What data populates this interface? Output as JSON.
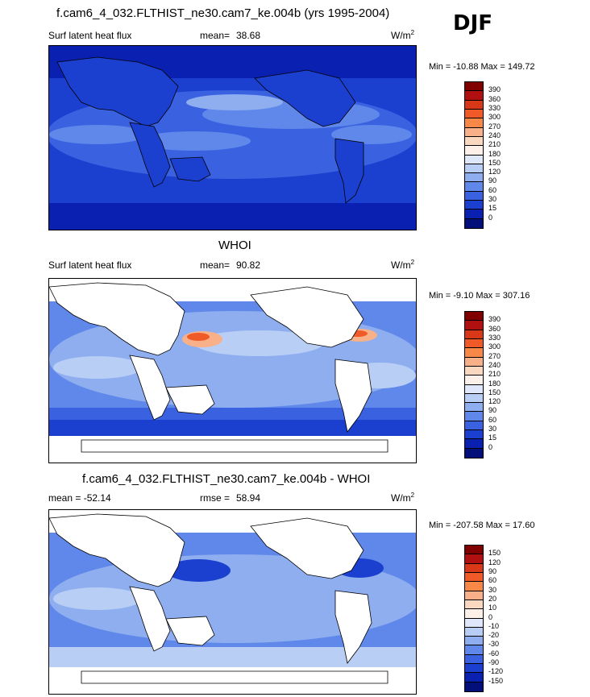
{
  "run_title": "f.cam6_4_032.FLTHIST_ne30.cam7_ke.004b (yrs 1995-2004)",
  "season": "DJF",
  "panels": [
    {
      "title": "",
      "variable": "Surf latent heat flux",
      "mean_label": "mean=",
      "mean_value": "38.68",
      "units": "W/m",
      "units_exp": "2",
      "minmax": "Min = -10.88 Max = 149.72",
      "colorbar_ticks": [
        "390",
        "360",
        "330",
        "300",
        "270",
        "240",
        "210",
        "180",
        "150",
        "120",
        "90",
        "60",
        "30",
        "15",
        "0"
      ]
    },
    {
      "title": "WHOI",
      "variable": "Surf latent heat flux",
      "mean_label": "mean=",
      "mean_value": "90.82",
      "units": "W/m",
      "units_exp": "2",
      "minmax": "Min =  -9.10 Max = 307.16",
      "colorbar_ticks": [
        "390",
        "360",
        "330",
        "300",
        "270",
        "240",
        "210",
        "180",
        "150",
        "120",
        "90",
        "60",
        "30",
        "15",
        "0"
      ]
    },
    {
      "title": "f.cam6_4_032.FLTHIST_ne30.cam7_ke.004b - WHOI",
      "variable": "mean = -52.14",
      "mean_label": "rmse =",
      "mean_value": "58.94",
      "units": "W/m",
      "units_exp": "2",
      "minmax": "Min = -207.58 Max =  17.60",
      "colorbar_ticks": [
        "150",
        "120",
        "90",
        "60",
        "30",
        "20",
        "10",
        "0",
        "-10",
        "-20",
        "-30",
        "-60",
        "-90",
        "-120",
        "-150"
      ]
    }
  ],
  "colors": {
    "abs_scale": [
      "#800000",
      "#b01010",
      "#d83818",
      "#f05a28",
      "#f88848",
      "#f8b088",
      "#fad8c0",
      "#fdf0e8",
      "#dfe8fa",
      "#b8cef5",
      "#8eaef0",
      "#6088ea",
      "#3a62e0",
      "#1b3fcf",
      "#0a20b0",
      "#04107a"
    ],
    "diff_scale": [
      "#800000",
      "#b01010",
      "#d83818",
      "#f05a28",
      "#f88848",
      "#f8b088",
      "#fad8c0",
      "#fdf0e8",
      "#dfe8fa",
      "#b8cef5",
      "#8eaef0",
      "#6088ea",
      "#3a62e0",
      "#1b3fcf",
      "#0a20b0",
      "#04107a"
    ],
    "land": "#ffffff",
    "coast": "#000000"
  }
}
